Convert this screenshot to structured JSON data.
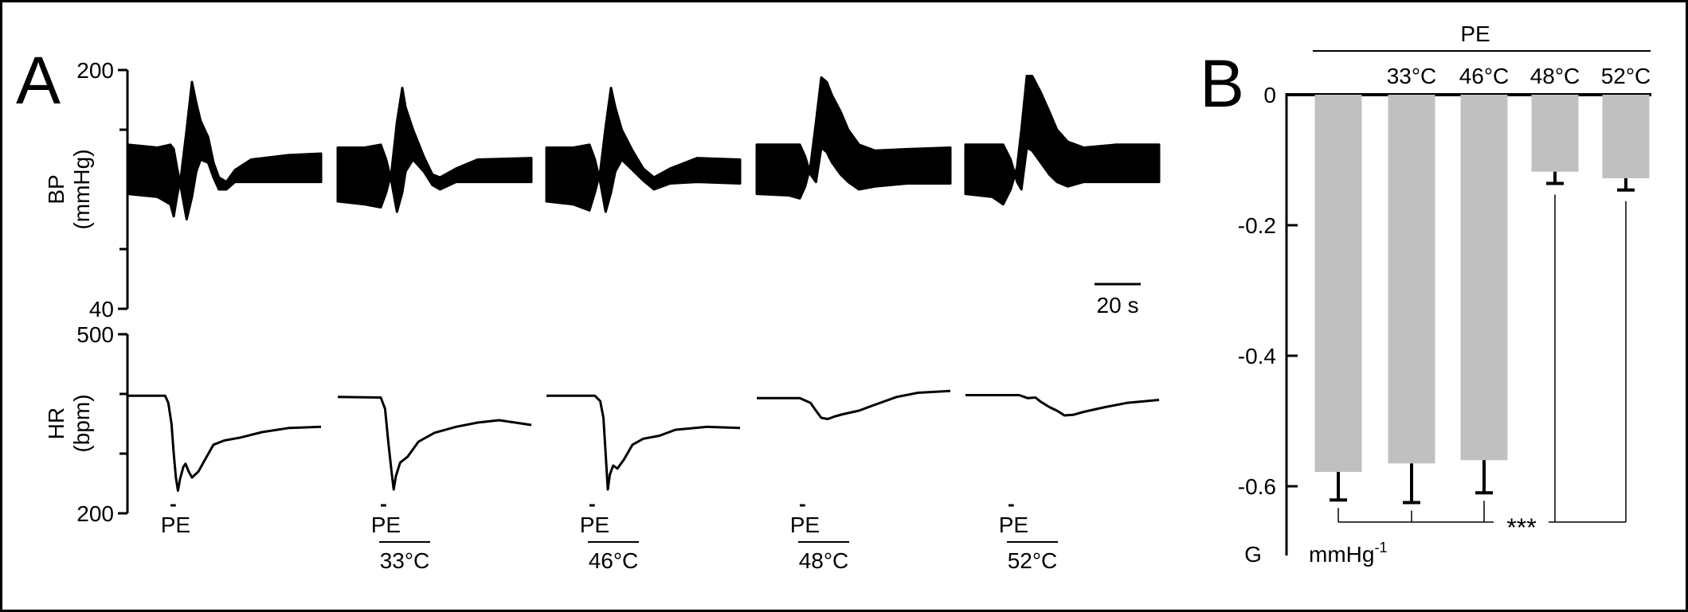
{
  "panels": {
    "a_letter": "A",
    "b_letter": "B"
  },
  "colors": {
    "ink": "#000000",
    "bar_fill": "#c0c0c0",
    "background": "#ffffff"
  },
  "chart_data": [
    {
      "type": "line",
      "panel": "A",
      "title": "",
      "bp_axis": {
        "label_line1": "BP",
        "label_line2": "(mmHg)",
        "ylim": [
          40,
          200
        ],
        "ticks": [
          200,
          40
        ],
        "tick_labels": [
          "200",
          "40"
        ]
      },
      "hr_axis": {
        "label_line1": "HR",
        "label_line2": "(bpm)",
        "ylim": [
          200,
          500
        ],
        "ticks": [
          500,
          200
        ],
        "tick_labels": [
          "500",
          "200"
        ]
      },
      "scale_bar": {
        "label": "20 s",
        "duration_s": 20
      },
      "stimulus_label": "PE",
      "conditions": [
        {
          "label": "",
          "bp_band": [
            [
              0,
              117,
              150
            ],
            [
              28,
              115,
              148
            ],
            [
              40,
              110,
              150
            ],
            [
              43,
              102,
              147
            ],
            [
              46,
              115,
              135
            ],
            [
              50,
              130,
              120
            ],
            [
              55,
              160,
              100
            ],
            [
              60,
              192,
              115
            ],
            [
              64,
              178,
              132
            ],
            [
              68,
              166,
              140
            ],
            [
              75,
              155,
              138
            ],
            [
              80,
              138,
              128
            ],
            [
              85,
              128,
              120
            ],
            [
              92,
              125,
              120
            ],
            [
              100,
              133,
              125
            ],
            [
              115,
              140,
              125
            ],
            [
              150,
              143,
              125
            ],
            [
              180,
              144,
              125
            ]
          ],
          "hr": [
            [
              0,
              397
            ],
            [
              35,
              397
            ],
            [
              38,
              385
            ],
            [
              41,
              350
            ],
            [
              43,
              300
            ],
            [
              45,
              260
            ],
            [
              47,
              238
            ],
            [
              49,
              258
            ],
            [
              52,
              278
            ],
            [
              54,
              283
            ],
            [
              57,
              270
            ],
            [
              60,
              260
            ],
            [
              66,
              270
            ],
            [
              73,
              293
            ],
            [
              80,
              315
            ],
            [
              90,
              322
            ],
            [
              105,
              327
            ],
            [
              125,
              336
            ],
            [
              150,
              343
            ],
            [
              180,
              345
            ]
          ],
          "pe_bar": [
            40,
            45
          ]
        },
        {
          "label": "33°C",
          "bp_band": [
            [
              0,
              112,
              148
            ],
            [
              25,
              110,
              148
            ],
            [
              40,
              108,
              150
            ],
            [
              45,
              118,
              140
            ],
            [
              50,
              132,
              125
            ],
            [
              55,
              165,
              105
            ],
            [
              60,
              188,
              118
            ],
            [
              63,
              175,
              132
            ],
            [
              70,
              160,
              140
            ],
            [
              80,
              142,
              132
            ],
            [
              88,
              130,
              123
            ],
            [
              95,
              128,
              120
            ],
            [
              110,
              134,
              125
            ],
            [
              130,
              140,
              125
            ],
            [
              180,
              141,
              125
            ]
          ],
          "hr": [
            [
              0,
              395
            ],
            [
              40,
              394
            ],
            [
              44,
              375
            ],
            [
              47,
              320
            ],
            [
              50,
              270
            ],
            [
              52,
              240
            ],
            [
              54,
              262
            ],
            [
              58,
              285
            ],
            [
              65,
              295
            ],
            [
              75,
              320
            ],
            [
              90,
              335
            ],
            [
              110,
              345
            ],
            [
              130,
              352
            ],
            [
              150,
              356
            ],
            [
              180,
              348
            ]
          ],
          "pe_bar": [
            40,
            45
          ]
        },
        {
          "label": "46°C",
          "bp_band": [
            [
              0,
              112,
              148
            ],
            [
              25,
              110,
              148
            ],
            [
              40,
              106,
              150
            ],
            [
              45,
              118,
              140
            ],
            [
              50,
              132,
              125
            ],
            [
              55,
              162,
              105
            ],
            [
              60,
              188,
              118
            ],
            [
              64,
              175,
              132
            ],
            [
              70,
              160,
              140
            ],
            [
              80,
              146,
              133
            ],
            [
              90,
              134,
              126
            ],
            [
              100,
              128,
              120
            ],
            [
              115,
              134,
              124
            ],
            [
              140,
              141,
              125
            ],
            [
              180,
              140,
              124
            ]
          ],
          "hr": [
            [
              0,
              397
            ],
            [
              45,
              397
            ],
            [
              50,
              388
            ],
            [
              53,
              360
            ],
            [
              55,
              300
            ],
            [
              57,
              240
            ],
            [
              59,
              265
            ],
            [
              62,
              280
            ],
            [
              66,
              275
            ],
            [
              72,
              290
            ],
            [
              80,
              315
            ],
            [
              90,
              325
            ],
            [
              105,
              330
            ],
            [
              120,
              340
            ],
            [
              150,
              345
            ],
            [
              180,
              343
            ]
          ],
          "pe_bar": [
            40,
            45
          ]
        },
        {
          "label": "48°C",
          "bp_band": [
            [
              0,
              117,
              150
            ],
            [
              30,
              116,
              150
            ],
            [
              40,
              114,
              150
            ],
            [
              45,
              122,
              142
            ],
            [
              50,
              136,
              130
            ],
            [
              55,
              165,
              125
            ],
            [
              60,
              195,
              148
            ],
            [
              65,
              192,
              145
            ],
            [
              70,
              183,
              138
            ],
            [
              78,
              172,
              130
            ],
            [
              85,
              160,
              125
            ],
            [
              95,
              150,
              120
            ],
            [
              110,
              146,
              122
            ],
            [
              140,
              147,
              124
            ],
            [
              180,
              148,
              124
            ]
          ],
          "hr": [
            [
              0,
              393
            ],
            [
              40,
              393
            ],
            [
              50,
              385
            ],
            [
              55,
              372
            ],
            [
              60,
              360
            ],
            [
              66,
              358
            ],
            [
              72,
              362
            ],
            [
              80,
              366
            ],
            [
              95,
              372
            ],
            [
              110,
              382
            ],
            [
              130,
              395
            ],
            [
              150,
              402
            ],
            [
              180,
              405
            ]
          ],
          "pe_bar": [
            40,
            45
          ]
        },
        {
          "label": "52°C",
          "bp_band": [
            [
              0,
              117,
              150
            ],
            [
              25,
              115,
              150
            ],
            [
              35,
              110,
              150
            ],
            [
              42,
              120,
              140
            ],
            [
              48,
              135,
              125
            ],
            [
              52,
              160,
              120
            ],
            [
              57,
              196,
              148
            ],
            [
              62,
              196,
              146
            ],
            [
              70,
              185,
              138
            ],
            [
              78,
              172,
              130
            ],
            [
              85,
              160,
              125
            ],
            [
              95,
              152,
              122
            ],
            [
              110,
              148,
              125
            ],
            [
              140,
              150,
              125
            ],
            [
              180,
              150,
              125
            ]
          ],
          "hr": [
            [
              0,
              398
            ],
            [
              50,
              398
            ],
            [
              58,
              393
            ],
            [
              65,
              394
            ],
            [
              70,
              387
            ],
            [
              78,
              378
            ],
            [
              85,
              372
            ],
            [
              92,
              364
            ],
            [
              100,
              365
            ],
            [
              110,
              370
            ],
            [
              130,
              378
            ],
            [
              150,
              385
            ],
            [
              180,
              390
            ]
          ],
          "pe_bar": [
            40,
            45
          ]
        }
      ]
    },
    {
      "type": "bar",
      "panel": "B",
      "title": "PE",
      "categories": [
        "",
        "33°C",
        "46°C",
        "48°C",
        "52°C"
      ],
      "values": [
        -0.578,
        -0.565,
        -0.56,
        -0.118,
        -0.128
      ],
      "errors": [
        0.043,
        0.06,
        0.05,
        0.018,
        0.018
      ],
      "ylabel": "G",
      "yunit_base": "mmHg",
      "yunit_exp": "-1",
      "ylim": [
        -0.7,
        0
      ],
      "yticks": [
        0,
        -0.2,
        -0.4,
        -0.6
      ],
      "ytick_labels": [
        "0",
        "-0.2",
        "-0.4",
        "-0.6"
      ],
      "significance": "***"
    }
  ]
}
